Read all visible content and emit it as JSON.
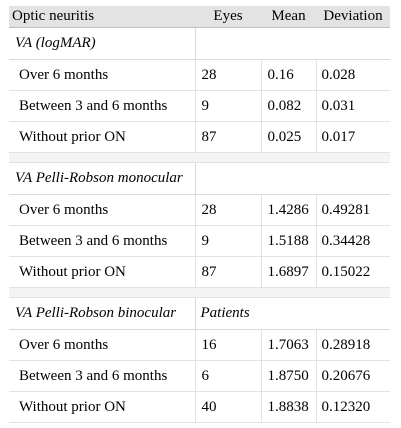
{
  "header": {
    "col1": "Optic neuritis",
    "col2": "Eyes",
    "col3": "Mean",
    "col4": "Deviation"
  },
  "sections": [
    {
      "title": "VA (logMAR)",
      "subheader": "",
      "rows": [
        {
          "label": "Over 6 months",
          "count": "28",
          "mean": "0.16",
          "deviation": "0.028"
        },
        {
          "label": "Between 3 and 6 months",
          "count": "9",
          "mean": "0.082",
          "deviation": "0.031"
        },
        {
          "label": "Without prior ON",
          "count": "87",
          "mean": "0.025",
          "deviation": "0.017"
        }
      ]
    },
    {
      "title": "VA Pelli-Robson monocular",
      "subheader": "",
      "rows": [
        {
          "label": "Over 6 months",
          "count": "28",
          "mean": "1.4286",
          "deviation": "0.49281"
        },
        {
          "label": "Between 3 and 6 months",
          "count": "9",
          "mean": "1.5188",
          "deviation": "0.34428"
        },
        {
          "label": "Without prior ON",
          "count": "87",
          "mean": "1.6897",
          "deviation": "0.15022"
        }
      ]
    },
    {
      "title": "VA Pelli-Robson binocular",
      "subheader": "Patients",
      "rows": [
        {
          "label": "Over 6 months",
          "count": "16",
          "mean": "1.7063",
          "deviation": "0.28918"
        },
        {
          "label": "Between 3 and 6 months",
          "count": "6",
          "mean": "1.8750",
          "deviation": "0.20676"
        },
        {
          "label": "Without prior ON",
          "count": "40",
          "mean": "1.8838",
          "deviation": "0.12320"
        }
      ]
    }
  ]
}
